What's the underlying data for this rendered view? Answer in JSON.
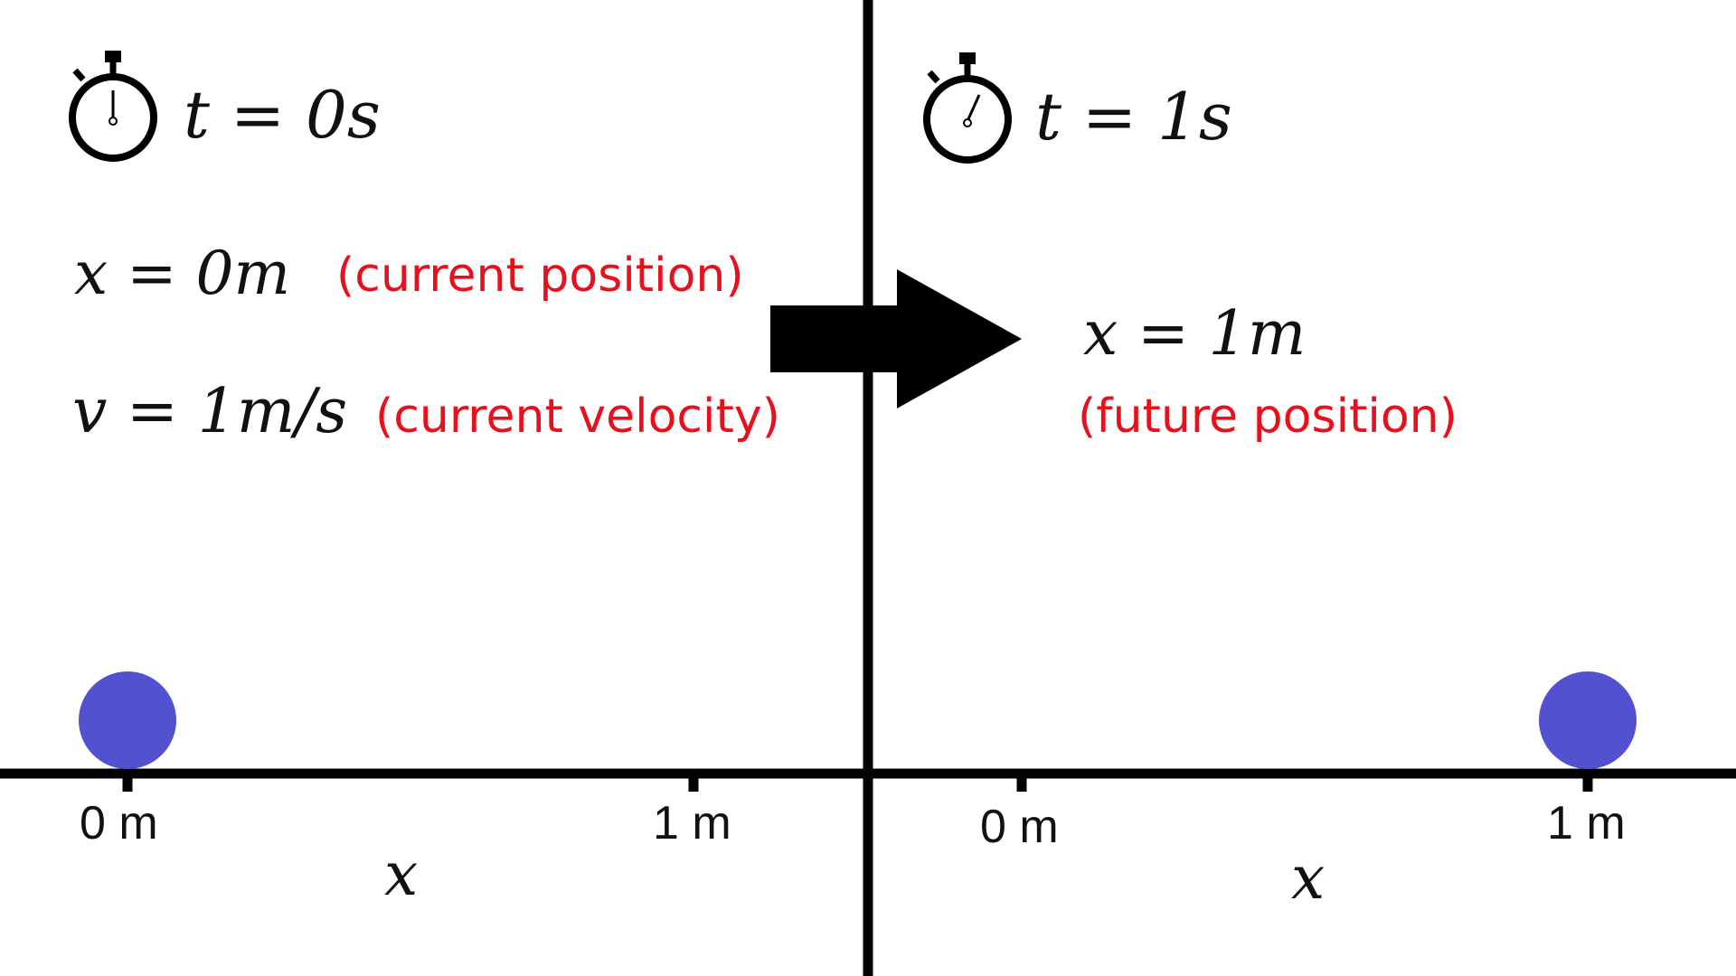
{
  "colors": {
    "ink": "#000000",
    "annotation": "#e8101c",
    "ball": "#5252d1",
    "background": "#ffffff"
  },
  "before": {
    "time_label": "t = 0s",
    "position_eq": "x = 0m",
    "position_note": "(current position)",
    "velocity_eq": "v = 1m/s",
    "velocity_note": "(current velocity)",
    "axis_label": "x",
    "tick_0": "0 m",
    "tick_1": "1 m",
    "ball_position_m": 0,
    "stopwatch_icon": "stopwatch-icon"
  },
  "after": {
    "time_label": "t = 1s",
    "position_eq": "x = 1m",
    "position_note": "(future position)",
    "axis_label": "x",
    "tick_0": "0 m",
    "tick_1": "1 m",
    "ball_position_m": 1,
    "stopwatch_icon": "stopwatch-icon"
  },
  "transition_icon": "arrow-right-icon"
}
